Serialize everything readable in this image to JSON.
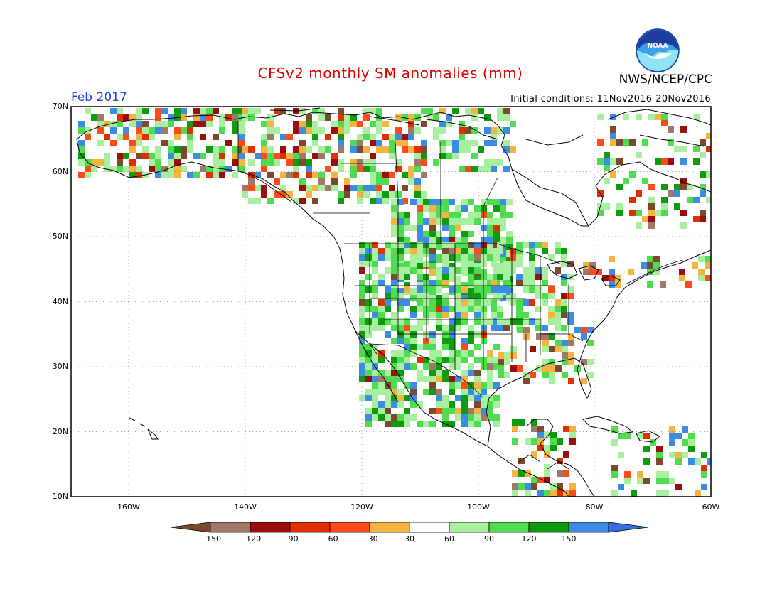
{
  "header": {
    "title": "CFSv2 monthly SM anomalies (mm)",
    "period": "Feb 2017",
    "initial_conditions": "Initial conditions: 11Nov2016-20Nov2016",
    "organization": "NWS/NCEP/CPC",
    "logo_text": "NOAA"
  },
  "map": {
    "lat_labels": [
      "70N",
      "60N",
      "50N",
      "40N",
      "30N",
      "20N",
      "10N"
    ],
    "lon_labels": [
      "160W",
      "140W",
      "120W",
      "100W",
      "80W",
      "60W"
    ],
    "extent": {
      "lon_min": -171,
      "lon_max": -60,
      "lat_min": 10,
      "lat_max": 70
    }
  },
  "colorbar": {
    "colors": [
      "#7a4a2e",
      "#a0786a",
      "#9a0e0e",
      "#e03000",
      "#ff4a1a",
      "#f4b440",
      "#ffffff",
      "#a8f0a0",
      "#50dc50",
      "#109a10",
      "#3c8ce6",
      "#3470e0"
    ],
    "tick_labels": [
      "-150",
      "-120",
      "-90",
      "-60",
      "-30",
      "30",
      "60",
      "90",
      "120",
      "150"
    ]
  }
}
